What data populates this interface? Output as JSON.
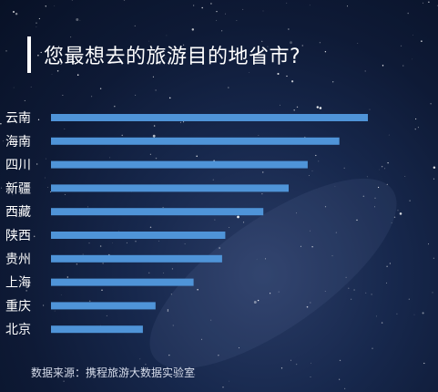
{
  "chart_data": {
    "type": "bar",
    "orientation": "horizontal",
    "title": "您最想去的旅游目的地省市?",
    "categories": [
      "云南",
      "海南",
      "四川",
      "新疆",
      "西藏",
      "陕西",
      "贵州",
      "上海",
      "重庆",
      "北京"
    ],
    "values": [
      100,
      91,
      81,
      75,
      67,
      55,
      54,
      45,
      33,
      29
    ],
    "xlim": [
      0,
      100
    ],
    "grid": false,
    "legend": "none",
    "bar_color": "#4f94d8"
  },
  "source": "数据来源：携程旅游大数据实验室"
}
